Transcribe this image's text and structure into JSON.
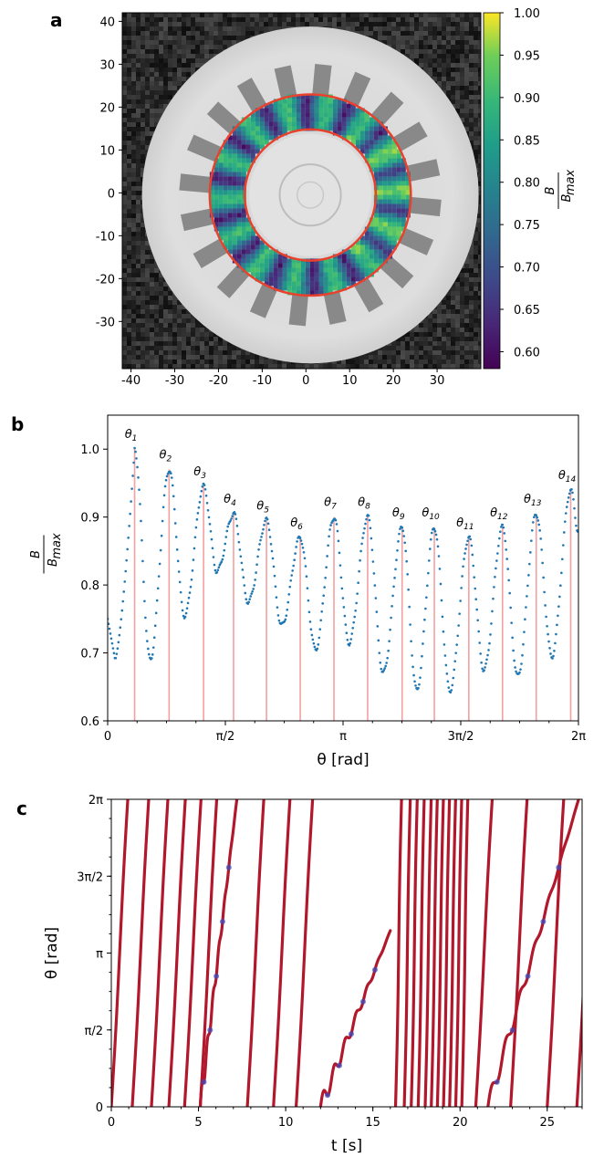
{
  "chart_data": [
    {
      "panel": "a",
      "type": "heatmap",
      "x_ticks": [
        "-40",
        "-30",
        "-20",
        "-10",
        "0",
        "10",
        "20",
        "30"
      ],
      "y_ticks": [
        "40",
        "30",
        "20",
        "10",
        "0",
        "-10",
        "-20",
        "-30"
      ],
      "xlim": [
        -42,
        40
      ],
      "ylim": [
        -41,
        42
      ],
      "ring": {
        "inner_radius": 15,
        "outer_radius": 23,
        "center": [
          1,
          -0.5
        ],
        "segments": 14
      },
      "colorbar": {
        "ticks": [
          "1.00",
          "0.95",
          "0.90",
          "0.85",
          "0.80",
          "0.75",
          "0.70",
          "0.65",
          "0.60"
        ],
        "range": [
          0.58,
          1.0
        ],
        "label_num": "B",
        "label_den": "B",
        "label_den_sub": "max"
      }
    },
    {
      "panel": "b",
      "type": "scatter",
      "xlabel": "θ [rad]",
      "ylabel_num": "B",
      "ylabel_den": "B",
      "ylabel_den_sub": "max",
      "xlim": [
        0,
        6.2832
      ],
      "ylim": [
        0.6,
        1.05
      ],
      "x_ticks": [
        {
          "value": 0,
          "label": "0"
        },
        {
          "value": 1.5708,
          "label": "π/2"
        },
        {
          "value": 3.1416,
          "label": "π"
        },
        {
          "value": 4.7124,
          "label": "3π/2"
        },
        {
          "value": 6.2832,
          "label": "2π"
        }
      ],
      "y_ticks": [
        {
          "value": 0.6,
          "label": "0.6"
        },
        {
          "value": 0.7,
          "label": "0.7"
        },
        {
          "value": 0.8,
          "label": "0.8"
        },
        {
          "value": 0.9,
          "label": "0.9"
        },
        {
          "value": 1.0,
          "label": "1.0"
        }
      ],
      "peaks": [
        {
          "label": "θ",
          "sub": "1",
          "x": 0.36,
          "y": 1.0
        },
        {
          "label": "θ",
          "sub": "2",
          "x": 0.82,
          "y": 0.97
        },
        {
          "label": "θ",
          "sub": "3",
          "x": 1.28,
          "y": 0.945
        },
        {
          "label": "θ",
          "sub": "4",
          "x": 1.68,
          "y": 0.905
        },
        {
          "label": "θ",
          "sub": "5",
          "x": 2.12,
          "y": 0.895
        },
        {
          "label": "θ",
          "sub": "6",
          "x": 2.57,
          "y": 0.87
        },
        {
          "label": "θ",
          "sub": "7",
          "x": 3.02,
          "y": 0.9
        },
        {
          "label": "θ",
          "sub": "8",
          "x": 3.47,
          "y": 0.9
        },
        {
          "label": "θ",
          "sub": "9",
          "x": 3.93,
          "y": 0.885
        },
        {
          "label": "θ",
          "sub": "10",
          "x": 4.36,
          "y": 0.885
        },
        {
          "label": "θ",
          "sub": "11",
          "x": 4.82,
          "y": 0.87
        },
        {
          "label": "θ",
          "sub": "12",
          "x": 5.27,
          "y": 0.885
        },
        {
          "label": "θ",
          "sub": "13",
          "x": 5.72,
          "y": 0.905
        },
        {
          "label": "θ",
          "sub": "14",
          "x": 6.18,
          "y": 0.94
        }
      ],
      "minima": [
        0.69,
        0.755,
        0.82,
        0.775,
        0.74,
        0.705,
        0.715,
        0.67,
        0.645,
        0.645,
        0.675,
        0.665,
        0.695,
        0.88
      ]
    },
    {
      "panel": "c",
      "type": "line",
      "xlabel": "t [s]",
      "ylabel": "θ [rad]",
      "xlim": [
        0,
        27
      ],
      "ylim": [
        0,
        6.2832
      ],
      "x_ticks": [
        {
          "value": 0,
          "label": "0"
        },
        {
          "value": 5,
          "label": "5"
        },
        {
          "value": 10,
          "label": "10"
        },
        {
          "value": 15,
          "label": "15"
        },
        {
          "value": 20,
          "label": "20"
        },
        {
          "value": 25,
          "label": "25"
        }
      ],
      "y_ticks": [
        {
          "value": 0,
          "label": "0"
        },
        {
          "value": 1.5708,
          "label": "π/2"
        },
        {
          "value": 3.1416,
          "label": "π"
        },
        {
          "value": 4.7124,
          "label": "3π/2"
        },
        {
          "value": 6.2832,
          "label": "2π"
        }
      ],
      "line_color": "#b2182b",
      "slow_color": "#3b4cc0",
      "fast_crossings": [
        0.0,
        1.2,
        2.3,
        3.3,
        4.2,
        5.1,
        7.8,
        9.3,
        10.6,
        16.3,
        16.8,
        17.2,
        17.6,
        18.0,
        18.35,
        18.7,
        19.05,
        19.4,
        19.75,
        20.1,
        20.9,
        22.9,
        25.0,
        26.7
      ],
      "slow_segments": [
        {
          "t0": 5.1,
          "t1": 7.2,
          "y0": 0.0,
          "y1": 6.2832
        },
        {
          "t0": 12.0,
          "t1": 16.0,
          "y0": 0.0,
          "y1": 3.6
        },
        {
          "t0": 21.6,
          "t1": 26.8,
          "y0": 0.0,
          "y1": 6.2832
        }
      ]
    }
  ]
}
